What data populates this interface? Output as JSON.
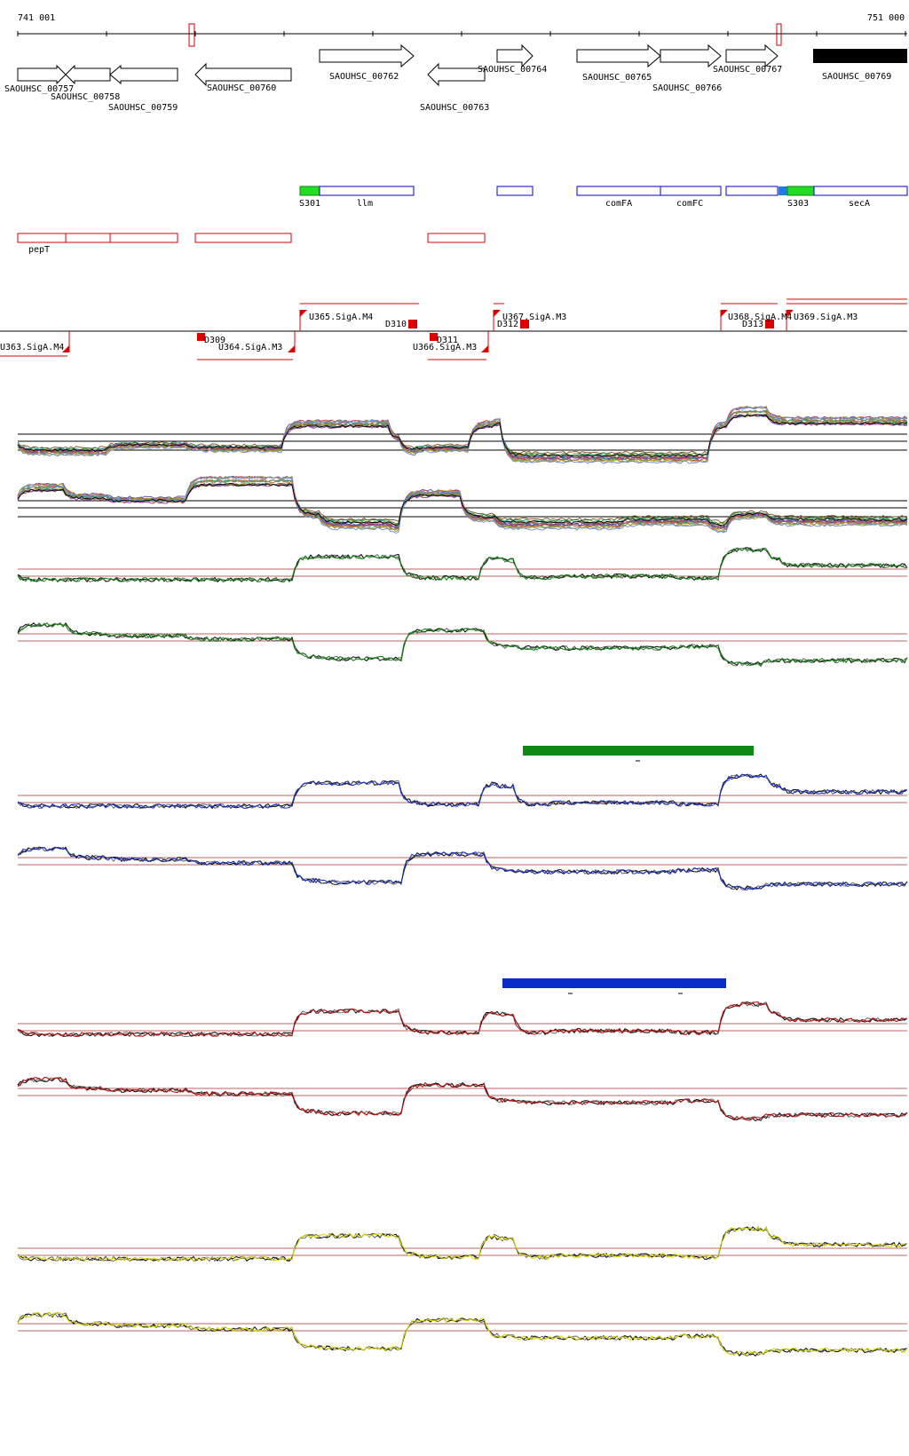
{
  "ruler": {
    "start_label": "741 001",
    "end_label": "751 000"
  },
  "genes": [
    {
      "id": "g757",
      "label": "SAOUHSC_00757",
      "dir": "fwd"
    },
    {
      "id": "g758",
      "label": "SAOUHSC_00758",
      "dir": "rev"
    },
    {
      "id": "g759",
      "label": "SAOUHSC_00759",
      "dir": "rev"
    },
    {
      "id": "g760",
      "label": "SAOUHSC_00760",
      "dir": "rev"
    },
    {
      "id": "g762",
      "label": "SAOUHSC_00762",
      "dir": "fwd"
    },
    {
      "id": "g763",
      "label": "SAOUHSC_00763",
      "dir": "rev"
    },
    {
      "id": "g764",
      "label": "SAOUHSC_00764",
      "dir": "fwd"
    },
    {
      "id": "g765",
      "label": "SAOUHSC_00765",
      "dir": "fwd"
    },
    {
      "id": "g766",
      "label": "SAOUHSC_00766",
      "dir": "fwd"
    },
    {
      "id": "g767",
      "label": "SAOUHSC_00767",
      "dir": "fwd"
    },
    {
      "id": "g769",
      "label": "SAOUHSC_00769",
      "dir": "filled"
    }
  ],
  "blue_features": [
    {
      "id": "S301",
      "label": "S301"
    },
    {
      "id": "llm",
      "label": "llm"
    },
    {
      "id": "comFA",
      "label": "comFA"
    },
    {
      "id": "comFC",
      "label": "comFC"
    },
    {
      "id": "S303",
      "label": "S303"
    },
    {
      "id": "secA",
      "label": "secA"
    }
  ],
  "red_features": [
    {
      "id": "pepT",
      "label": "pepT"
    }
  ],
  "promoters": [
    {
      "id": "U363",
      "label": "U363.SigA.M4"
    },
    {
      "id": "D309",
      "label": "D309"
    },
    {
      "id": "U364",
      "label": "U364.SigA.M3"
    },
    {
      "id": "U365",
      "label": "U365.SigA.M4"
    },
    {
      "id": "D310",
      "label": "D310"
    },
    {
      "id": "D311",
      "label": "D311"
    },
    {
      "id": "U366",
      "label": "U366.SigA.M3"
    },
    {
      "id": "U367",
      "label": "U367.SigA.M3"
    },
    {
      "id": "D312",
      "label": "D312"
    },
    {
      "id": "U368",
      "label": "U368.SigA.M4"
    },
    {
      "id": "D313",
      "label": "D313"
    },
    {
      "id": "U369",
      "label": "U369.SigA.M3"
    }
  ],
  "colors": {
    "blue_feature": "#0000cc",
    "red_feature": "#dd0000",
    "green": "#118811",
    "blue": "#1a33c8",
    "red": "#bb1111",
    "yellow": "#d8d800",
    "background": "#ffffff"
  },
  "tracks": [
    {
      "id": "multi-plus",
      "kind": "multi"
    },
    {
      "id": "multi-minus",
      "kind": "multi"
    },
    {
      "id": "green-plus",
      "color": "green"
    },
    {
      "id": "green-minus",
      "color": "green"
    },
    {
      "id": "blue-plus",
      "color": "blue"
    },
    {
      "id": "blue-minus",
      "color": "blue"
    },
    {
      "id": "red-plus",
      "color": "red"
    },
    {
      "id": "red-minus",
      "color": "red"
    },
    {
      "id": "yellow-plus",
      "color": "yellow"
    },
    {
      "id": "yellow-minus",
      "color": "yellow"
    }
  ]
}
